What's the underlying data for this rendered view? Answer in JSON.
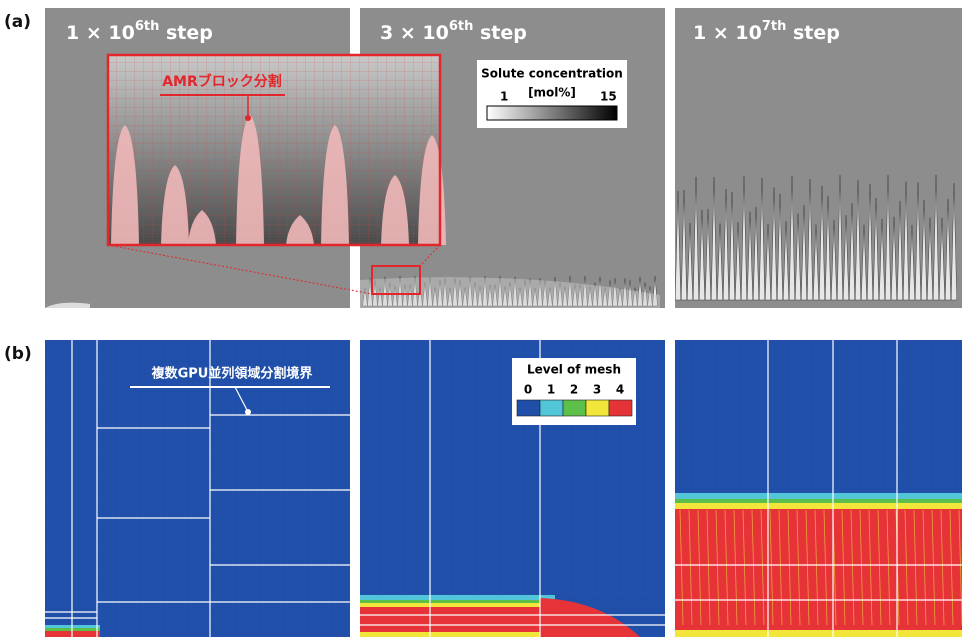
{
  "panels": {
    "a": {
      "label": "(a)",
      "titles": [
        {
          "base": "1 × 10",
          "sup": "6th",
          "tail": " step"
        },
        {
          "base": "3 × 10",
          "sup": "6th",
          "tail": " step"
        },
        {
          "base": "1 × 10",
          "sup": "7th",
          "tail": " step"
        }
      ],
      "inset_label": "AMRブロック分割",
      "colorbar": {
        "title": "Solute concentration",
        "unit": "[mol%]",
        "min": 1,
        "max": 15
      }
    },
    "b": {
      "label": "(b)",
      "boundary_label": "複数GPU並列領域分割境界",
      "legend": {
        "title": "Level of mesh",
        "levels": [
          0,
          1,
          2,
          3,
          4
        ],
        "colors": [
          "#1f4fa8",
          "#52c6d8",
          "#5cbf4a",
          "#f2e63a",
          "#e63338"
        ]
      }
    }
  }
}
